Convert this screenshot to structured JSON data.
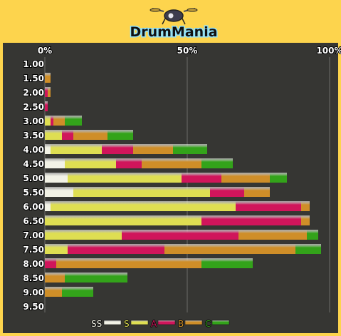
{
  "title": "DrumMania",
  "chart_data": {
    "type": "bar",
    "stacked": true,
    "orientation": "horizontal",
    "title": "DrumMania",
    "xlim": [
      0,
      100
    ],
    "x_ticks": [
      "0%",
      "50%",
      "100%"
    ],
    "grid": true,
    "legend_position": "bottom",
    "categories": [
      "1.00",
      "1.50",
      "2.00",
      "2.50",
      "3.00",
      "3.50",
      "4.00",
      "4.50",
      "5.00",
      "5.50",
      "6.00",
      "6.50",
      "7.00",
      "7.50",
      "8.00",
      "8.50",
      "9.00",
      "9.50"
    ],
    "series": [
      {
        "name": "SS",
        "color": "#f2f2e6",
        "values": [
          0,
          0,
          0,
          0,
          0,
          0,
          2,
          7,
          8,
          10,
          2,
          0,
          0,
          0,
          0,
          0,
          0,
          0
        ]
      },
      {
        "name": "S",
        "color": "#dede52",
        "values": [
          0,
          0,
          0,
          0,
          2,
          6,
          18,
          18,
          40,
          48,
          65,
          55,
          27,
          8,
          0,
          0,
          0,
          0
        ]
      },
      {
        "name": "A",
        "color": "#d0155b",
        "values": [
          0,
          0,
          1,
          1,
          1,
          4,
          11,
          9,
          14,
          12,
          23,
          35,
          41,
          34,
          4,
          0,
          0,
          0
        ]
      },
      {
        "name": "B",
        "color": "#cf8e28",
        "values": [
          0,
          2,
          1,
          0,
          4,
          12,
          14,
          21,
          17,
          9,
          3,
          3,
          24,
          46,
          51,
          7,
          6,
          0
        ]
      },
      {
        "name": "C",
        "color": "#33a31a",
        "values": [
          0,
          0,
          0,
          0,
          6,
          9,
          12,
          11,
          6,
          0,
          0,
          0,
          4,
          9,
          18,
          22,
          11,
          0
        ]
      }
    ]
  }
}
